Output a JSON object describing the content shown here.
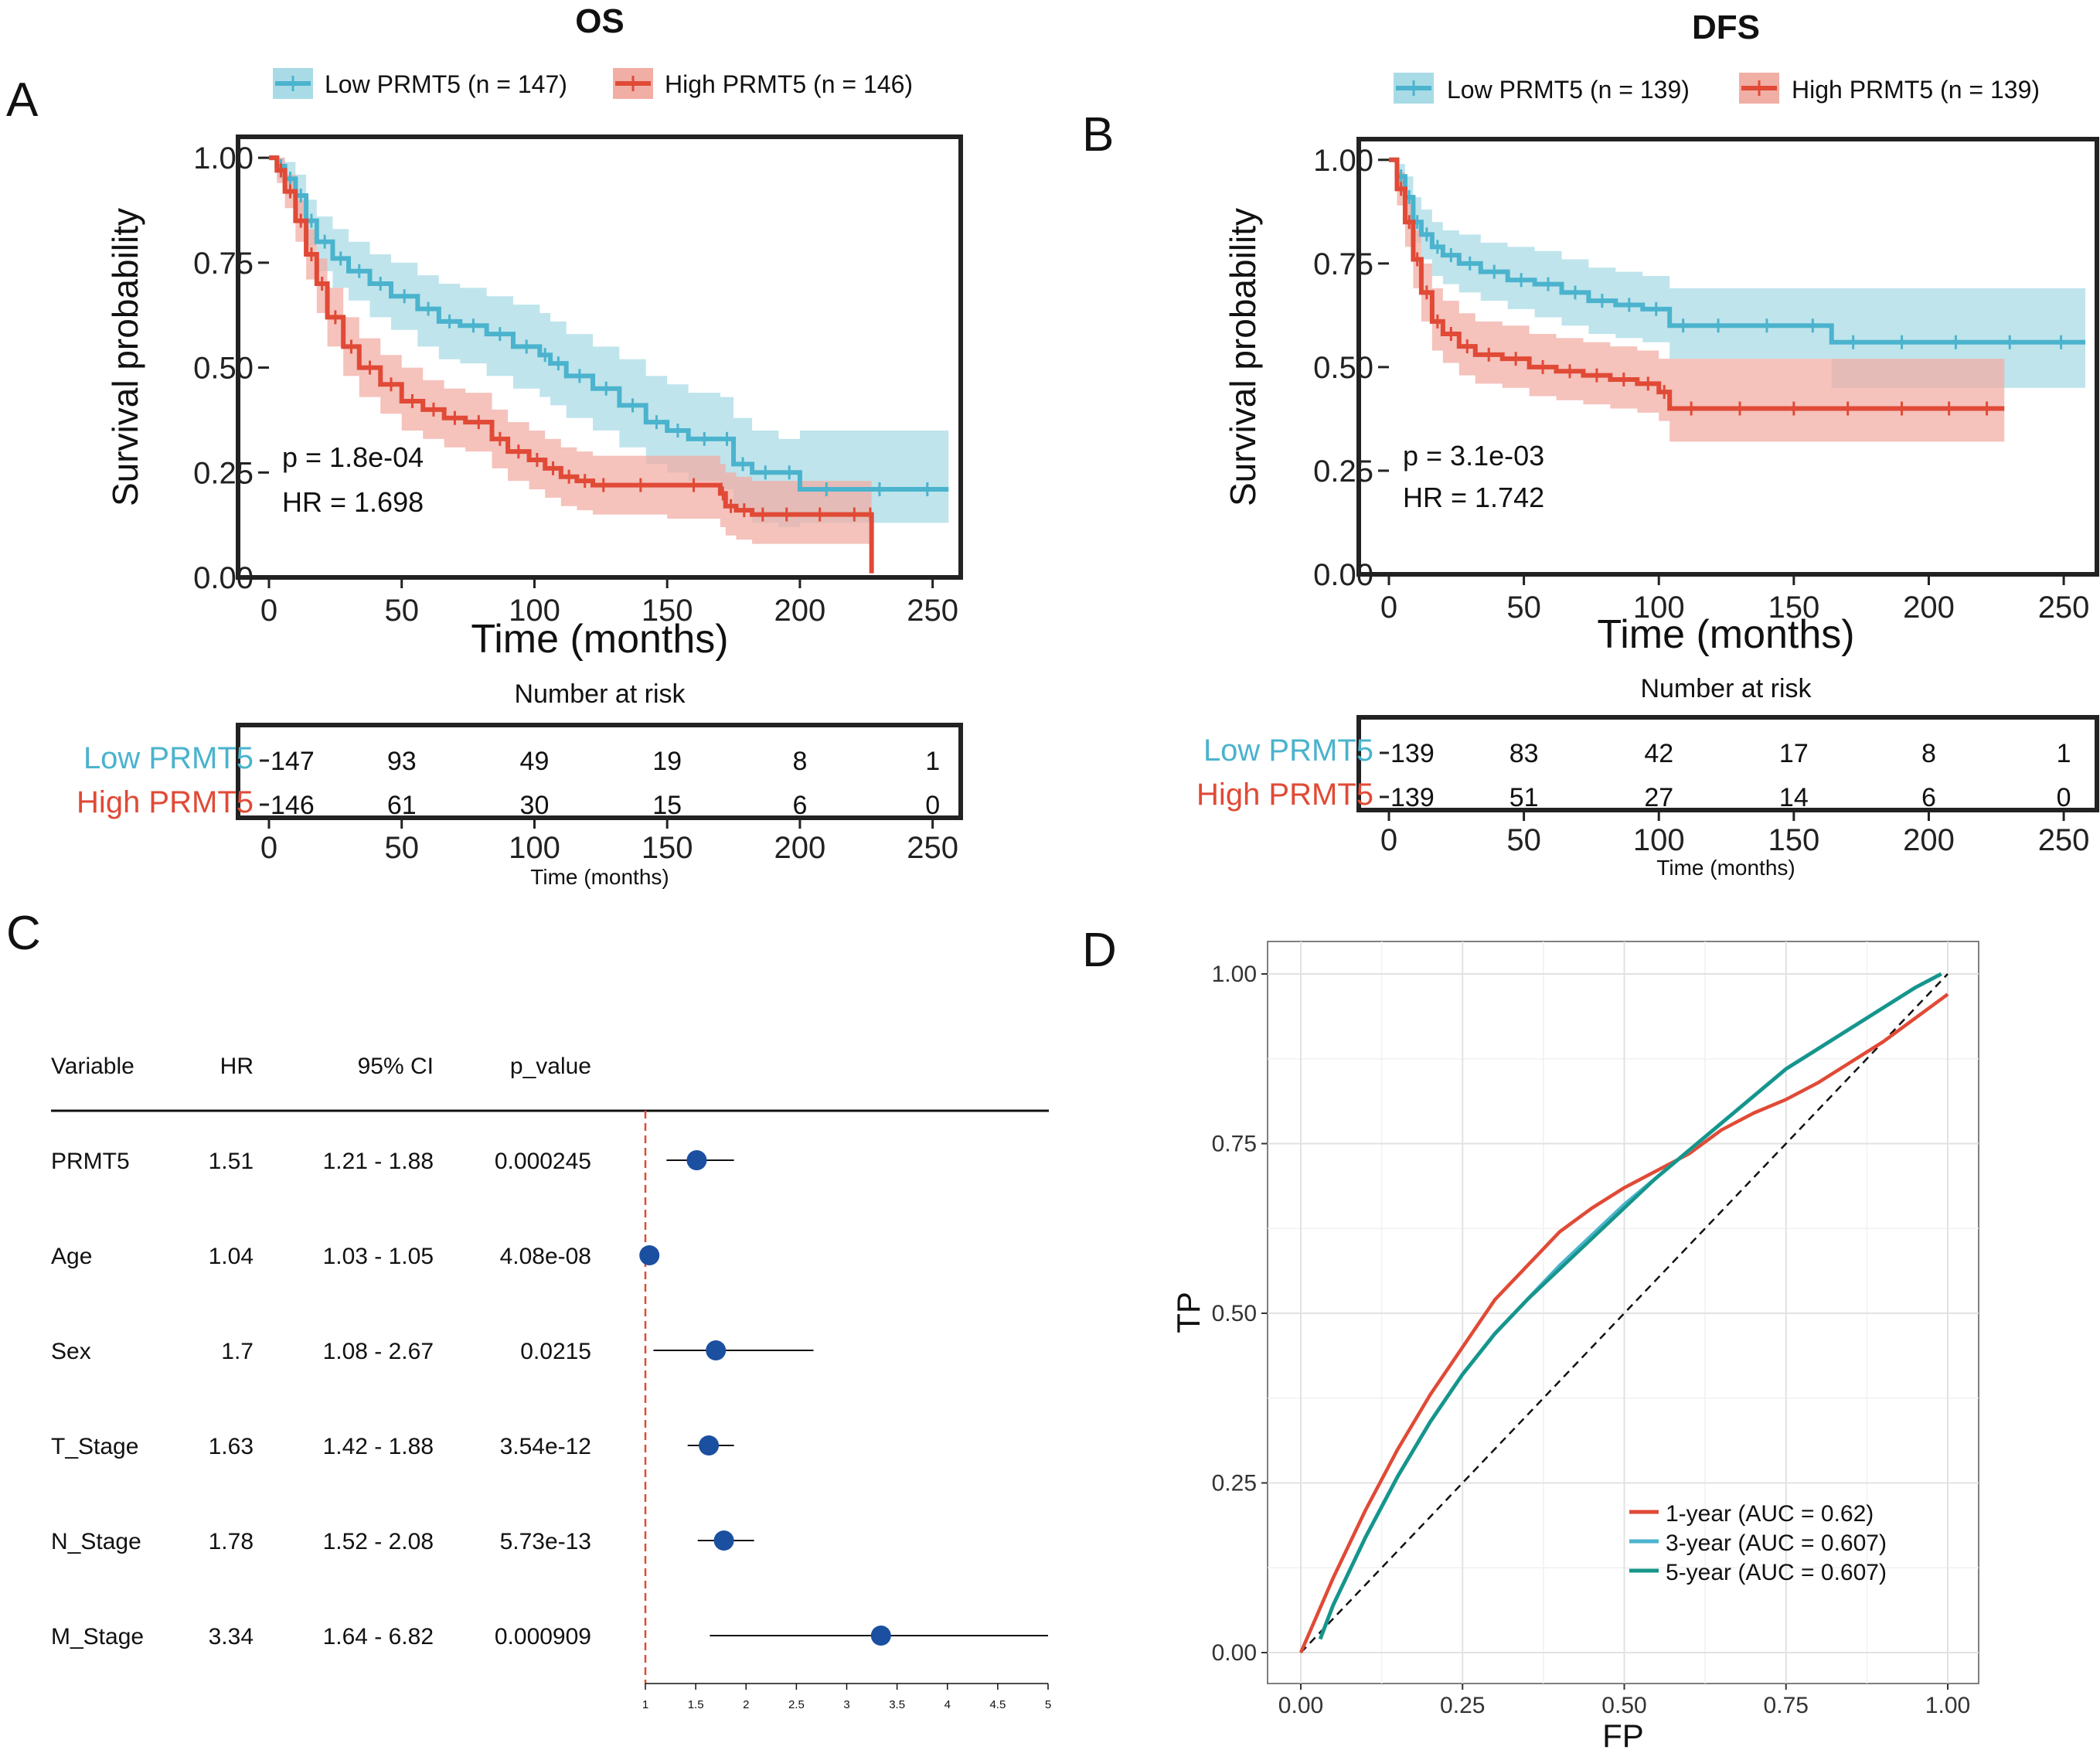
{
  "panels": {
    "A": "A",
    "B": "B",
    "C": "C",
    "D": "D"
  },
  "colors": {
    "low": "#4bb3cd",
    "high": "#e04a36",
    "low_band": "#a9dbe6",
    "high_band": "#f1aea5",
    "teal": "#16958a",
    "forest_point": "#1b4fa0"
  },
  "chart_data": [
    {
      "id": "os",
      "type": "line",
      "subtype": "kaplan-meier",
      "title": "OS",
      "xlabel": "Time (months)",
      "ylabel": "Survival probability",
      "xlim": [
        0,
        260
      ],
      "ylim": [
        0,
        1.05
      ],
      "x_ticks": [
        "0",
        "50",
        "100",
        "150",
        "200",
        "250"
      ],
      "y_ticks": [
        "0.00",
        "0.25",
        "0.50",
        "0.75",
        "1.00"
      ],
      "legend": [
        "Low PRMT5 (n = 147)",
        "High PRMT5 (n = 146)"
      ],
      "p_text": "p = 1.8e-04",
      "hr_text": "HR = 1.698",
      "series": [
        {
          "name": "Low PRMT5",
          "x": [
            0,
            3,
            6,
            10,
            14,
            18,
            24,
            30,
            38,
            46,
            56,
            64,
            72,
            82,
            92,
            102,
            106,
            112,
            122,
            132,
            142,
            150,
            158,
            170,
            175,
            182,
            192,
            200,
            220,
            240,
            256
          ],
          "y": [
            1.0,
            0.98,
            0.95,
            0.91,
            0.85,
            0.8,
            0.76,
            0.73,
            0.7,
            0.67,
            0.64,
            0.61,
            0.6,
            0.58,
            0.55,
            0.53,
            0.51,
            0.48,
            0.45,
            0.41,
            0.37,
            0.35,
            0.33,
            0.33,
            0.27,
            0.25,
            0.25,
            0.21,
            0.21,
            0.21,
            0.21
          ],
          "lo": [
            1.0,
            0.95,
            0.91,
            0.86,
            0.79,
            0.73,
            0.69,
            0.66,
            0.62,
            0.59,
            0.55,
            0.52,
            0.51,
            0.48,
            0.45,
            0.43,
            0.41,
            0.38,
            0.35,
            0.31,
            0.27,
            0.25,
            0.23,
            0.21,
            0.16,
            0.13,
            0.12,
            0.13,
            0.13,
            0.13,
            0.13
          ],
          "hi": [
            1.0,
            1.0,
            0.99,
            0.96,
            0.9,
            0.86,
            0.83,
            0.8,
            0.77,
            0.75,
            0.72,
            0.7,
            0.69,
            0.67,
            0.65,
            0.63,
            0.61,
            0.58,
            0.55,
            0.52,
            0.48,
            0.46,
            0.44,
            0.43,
            0.38,
            0.35,
            0.33,
            0.35,
            0.35,
            0.35,
            0.35
          ]
        },
        {
          "name": "High PRMT5",
          "x": [
            0,
            3,
            6,
            10,
            14,
            18,
            22,
            28,
            34,
            42,
            50,
            58,
            66,
            74,
            84,
            90,
            98,
            104,
            110,
            116,
            122,
            130,
            150,
            170,
            172,
            176,
            182,
            190,
            200,
            215,
            226,
            227
          ],
          "y": [
            1.0,
            0.97,
            0.92,
            0.85,
            0.77,
            0.7,
            0.62,
            0.55,
            0.5,
            0.46,
            0.42,
            0.4,
            0.38,
            0.37,
            0.33,
            0.3,
            0.28,
            0.26,
            0.24,
            0.23,
            0.22,
            0.22,
            0.22,
            0.2,
            0.17,
            0.16,
            0.15,
            0.15,
            0.15,
            0.15,
            0.15,
            0.01
          ],
          "lo": [
            1.0,
            0.94,
            0.88,
            0.8,
            0.71,
            0.63,
            0.55,
            0.48,
            0.43,
            0.39,
            0.35,
            0.33,
            0.31,
            0.3,
            0.26,
            0.23,
            0.21,
            0.19,
            0.17,
            0.16,
            0.15,
            0.15,
            0.14,
            0.12,
            0.1,
            0.09,
            0.08,
            0.08,
            0.08,
            0.08,
            0.08,
            0.08
          ],
          "hi": [
            1.0,
            1.0,
            0.96,
            0.9,
            0.83,
            0.76,
            0.69,
            0.62,
            0.57,
            0.53,
            0.5,
            0.47,
            0.45,
            0.44,
            0.4,
            0.37,
            0.35,
            0.33,
            0.31,
            0.3,
            0.29,
            0.29,
            0.29,
            0.27,
            0.25,
            0.24,
            0.23,
            0.23,
            0.23,
            0.23,
            0.23,
            0.23
          ]
        }
      ],
      "risk_table": {
        "title": "Number at risk",
        "rows": [
          {
            "label": "Low PRMT5",
            "values": [
              "147",
              "93",
              "49",
              "19",
              "8",
              "1"
            ]
          },
          {
            "label": "High PRMT5",
            "values": [
              "146",
              "61",
              "30",
              "15",
              "6",
              "0"
            ]
          }
        ],
        "x_ticks": [
          "0",
          "50",
          "100",
          "150",
          "200",
          "250"
        ],
        "xlabel": "Time (months)"
      }
    },
    {
      "id": "dfs",
      "type": "line",
      "subtype": "kaplan-meier",
      "title": "DFS",
      "xlabel": "Time (months)",
      "ylabel": "Survival probability",
      "xlim": [
        0,
        260
      ],
      "ylim": [
        0,
        1.05
      ],
      "x_ticks": [
        "0",
        "50",
        "100",
        "150",
        "200",
        "250"
      ],
      "y_ticks": [
        "0.00",
        "0.25",
        "0.50",
        "0.75",
        "1.00"
      ],
      "legend": [
        "Low PRMT5 (n = 139)",
        "High PRMT5 (n = 139)"
      ],
      "p_text": "p = 3.1e-03",
      "hr_text": "HR = 1.742",
      "series": [
        {
          "name": "Low PRMT5",
          "x": [
            0,
            3,
            6,
            9,
            12,
            16,
            20,
            26,
            34,
            44,
            54,
            64,
            74,
            84,
            94,
            104,
            114,
            130,
            150,
            164,
            180,
            200,
            220,
            240,
            258
          ],
          "y": [
            1.0,
            0.96,
            0.91,
            0.85,
            0.82,
            0.79,
            0.77,
            0.75,
            0.73,
            0.71,
            0.7,
            0.68,
            0.66,
            0.65,
            0.64,
            0.6,
            0.6,
            0.6,
            0.6,
            0.56,
            0.56,
            0.56,
            0.56,
            0.56,
            0.56
          ],
          "lo": [
            1.0,
            0.93,
            0.86,
            0.8,
            0.76,
            0.72,
            0.7,
            0.68,
            0.66,
            0.64,
            0.62,
            0.6,
            0.58,
            0.57,
            0.56,
            0.52,
            0.52,
            0.52,
            0.52,
            0.45,
            0.45,
            0.45,
            0.45,
            0.45,
            0.45
          ],
          "hi": [
            1.0,
            0.99,
            0.96,
            0.91,
            0.88,
            0.85,
            0.83,
            0.82,
            0.8,
            0.79,
            0.78,
            0.76,
            0.74,
            0.73,
            0.72,
            0.69,
            0.69,
            0.69,
            0.69,
            0.69,
            0.69,
            0.69,
            0.69,
            0.69,
            0.69
          ]
        },
        {
          "name": "High PRMT5",
          "x": [
            0,
            3,
            6,
            9,
            12,
            16,
            20,
            26,
            32,
            42,
            52,
            62,
            72,
            82,
            92,
            100,
            104,
            120,
            140,
            160,
            180,
            200,
            215,
            228
          ],
          "y": [
            1.0,
            0.93,
            0.85,
            0.76,
            0.68,
            0.61,
            0.58,
            0.55,
            0.53,
            0.52,
            0.5,
            0.49,
            0.48,
            0.47,
            0.46,
            0.44,
            0.4,
            0.4,
            0.4,
            0.4,
            0.4,
            0.4,
            0.4,
            0.4
          ],
          "lo": [
            1.0,
            0.89,
            0.79,
            0.69,
            0.61,
            0.54,
            0.51,
            0.48,
            0.46,
            0.45,
            0.43,
            0.42,
            0.41,
            0.4,
            0.39,
            0.37,
            0.32,
            0.32,
            0.32,
            0.32,
            0.32,
            0.32,
            0.32,
            0.32
          ],
          "hi": [
            1.0,
            0.97,
            0.91,
            0.83,
            0.75,
            0.69,
            0.66,
            0.63,
            0.61,
            0.6,
            0.58,
            0.57,
            0.56,
            0.55,
            0.54,
            0.52,
            0.52,
            0.52,
            0.52,
            0.52,
            0.52,
            0.52,
            0.52,
            0.52
          ]
        }
      ],
      "risk_table": {
        "title": "Number at risk",
        "rows": [
          {
            "label": "Low PRMT5",
            "values": [
              "139",
              "83",
              "42",
              "17",
              "8",
              "1"
            ]
          },
          {
            "label": "High PRMT5",
            "values": [
              "139",
              "51",
              "27",
              "14",
              "6",
              "0"
            ]
          }
        ],
        "x_ticks": [
          "0",
          "50",
          "100",
          "150",
          "200",
          "250"
        ],
        "xlabel": "Time (months)"
      }
    },
    {
      "id": "forest",
      "type": "table",
      "subtype": "forest-plot",
      "headers": [
        "Variable",
        "HR",
        "95% CI",
        "p_value"
      ],
      "rows": [
        {
          "variable": "PRMT5",
          "hr": "1.51",
          "ci": "1.21 - 1.88",
          "p": "0.000245",
          "est": 1.51,
          "lo": 1.21,
          "hi": 1.88
        },
        {
          "variable": "Age",
          "hr": "1.04",
          "ci": "1.03 - 1.05",
          "p": "4.08e-08",
          "est": 1.04,
          "lo": 1.03,
          "hi": 1.05
        },
        {
          "variable": "Sex",
          "hr": "1.7",
          "ci": "1.08 - 2.67",
          "p": "0.0215",
          "est": 1.7,
          "lo": 1.08,
          "hi": 2.67
        },
        {
          "variable": "T_Stage",
          "hr": "1.63",
          "ci": "1.42 - 1.88",
          "p": "3.54e-12",
          "est": 1.63,
          "lo": 1.42,
          "hi": 1.88
        },
        {
          "variable": "N_Stage",
          "hr": "1.78",
          "ci": "1.52 - 2.08",
          "p": "5.73e-13",
          "est": 1.78,
          "lo": 1.52,
          "hi": 2.08
        },
        {
          "variable": "M_Stage",
          "hr": "3.34",
          "ci": "1.64 - 6.82",
          "p": "0.000909",
          "est": 3.34,
          "lo": 1.64,
          "hi": 6.82
        }
      ],
      "x_ticks": [
        "1",
        "1.5",
        "2",
        "2.5",
        "3",
        "3.5",
        "4",
        "4.5",
        "5"
      ],
      "xlim": [
        1,
        5
      ],
      "reference": 1
    },
    {
      "id": "roc",
      "type": "line",
      "subtype": "roc",
      "xlabel": "FP",
      "ylabel": "TP",
      "xlim": [
        0,
        1
      ],
      "ylim": [
        0,
        1
      ],
      "x_ticks": [
        "0.00",
        "0.25",
        "0.50",
        "0.75",
        "1.00"
      ],
      "y_ticks": [
        "0.00",
        "0.25",
        "0.50",
        "0.75",
        "1.00"
      ],
      "series": [
        {
          "name": "1-year (AUC = 0.62)",
          "x": [
            0,
            0.05,
            0.1,
            0.15,
            0.2,
            0.25,
            0.3,
            0.35,
            0.4,
            0.45,
            0.5,
            0.55,
            0.6,
            0.65,
            0.7,
            0.75,
            0.8,
            0.85,
            0.9,
            0.95,
            1.0
          ],
          "y": [
            0,
            0.11,
            0.21,
            0.3,
            0.38,
            0.45,
            0.52,
            0.57,
            0.62,
            0.655,
            0.685,
            0.71,
            0.735,
            0.77,
            0.795,
            0.815,
            0.84,
            0.87,
            0.9,
            0.935,
            0.97
          ]
        },
        {
          "name": "3-year (AUC = 0.607)",
          "x": [
            0.03,
            0.05,
            0.1,
            0.15,
            0.2,
            0.25,
            0.3,
            0.35,
            0.4,
            0.45,
            0.5,
            0.55,
            0.6,
            0.65,
            0.7,
            0.75,
            0.8,
            0.85,
            0.9,
            0.95,
            0.99
          ],
          "y": [
            0.02,
            0.07,
            0.17,
            0.26,
            0.34,
            0.41,
            0.47,
            0.52,
            0.57,
            0.615,
            0.66,
            0.7,
            0.74,
            0.78,
            0.82,
            0.86,
            0.89,
            0.92,
            0.95,
            0.98,
            1.0
          ]
        },
        {
          "name": "5-year (AUC = 0.607)",
          "x": [
            0.03,
            0.05,
            0.1,
            0.15,
            0.2,
            0.25,
            0.3,
            0.35,
            0.4,
            0.45,
            0.5,
            0.55,
            0.6,
            0.65,
            0.7,
            0.75,
            0.8,
            0.85,
            0.9,
            0.95,
            0.99
          ],
          "y": [
            0.02,
            0.07,
            0.17,
            0.26,
            0.34,
            0.41,
            0.47,
            0.52,
            0.565,
            0.61,
            0.655,
            0.7,
            0.74,
            0.78,
            0.82,
            0.86,
            0.89,
            0.92,
            0.95,
            0.98,
            1.0
          ]
        }
      ]
    }
  ]
}
